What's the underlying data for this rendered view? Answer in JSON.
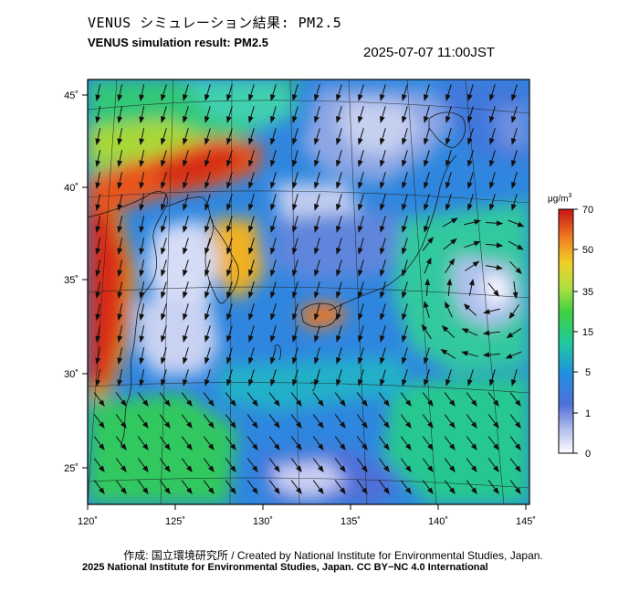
{
  "header": {
    "title_jp": "VENUS シミュレーション結果: PM2.5",
    "title_en": "VENUS simulation result: PM2.5",
    "timestamp": "2025-07-07 11:00JST"
  },
  "map": {
    "lon_ticks": [
      "120˚",
      "125˚",
      "130˚",
      "135˚",
      "140˚",
      "145˚"
    ],
    "lat_ticks": [
      "45˚",
      "40˚",
      "35˚",
      "30˚",
      "25˚"
    ],
    "region": "East Asia / Japan",
    "overlay": "wind vectors"
  },
  "colorbar": {
    "unit_prefix": "μg/m",
    "unit_sup": "3",
    "ticks": [
      "70",
      "50",
      "35",
      "15",
      "5",
      "1",
      "0"
    ],
    "colors": [
      "#c81e1e",
      "#e8501e",
      "#f5a020",
      "#f0e030",
      "#a8e040",
      "#30d050",
      "#20c8a0",
      "#2090e0",
      "#3060d0",
      "#8098e0",
      "#c8d0f0",
      "#ffffff"
    ]
  },
  "footer": {
    "credit_jp_en": "作成: 国立環境研究所 / Created by National Institute for Environmental Studies, Japan.",
    "copyright": "2025 National Institute for Environmental Studies, Japan. CC BY−NC 4.0 International"
  }
}
